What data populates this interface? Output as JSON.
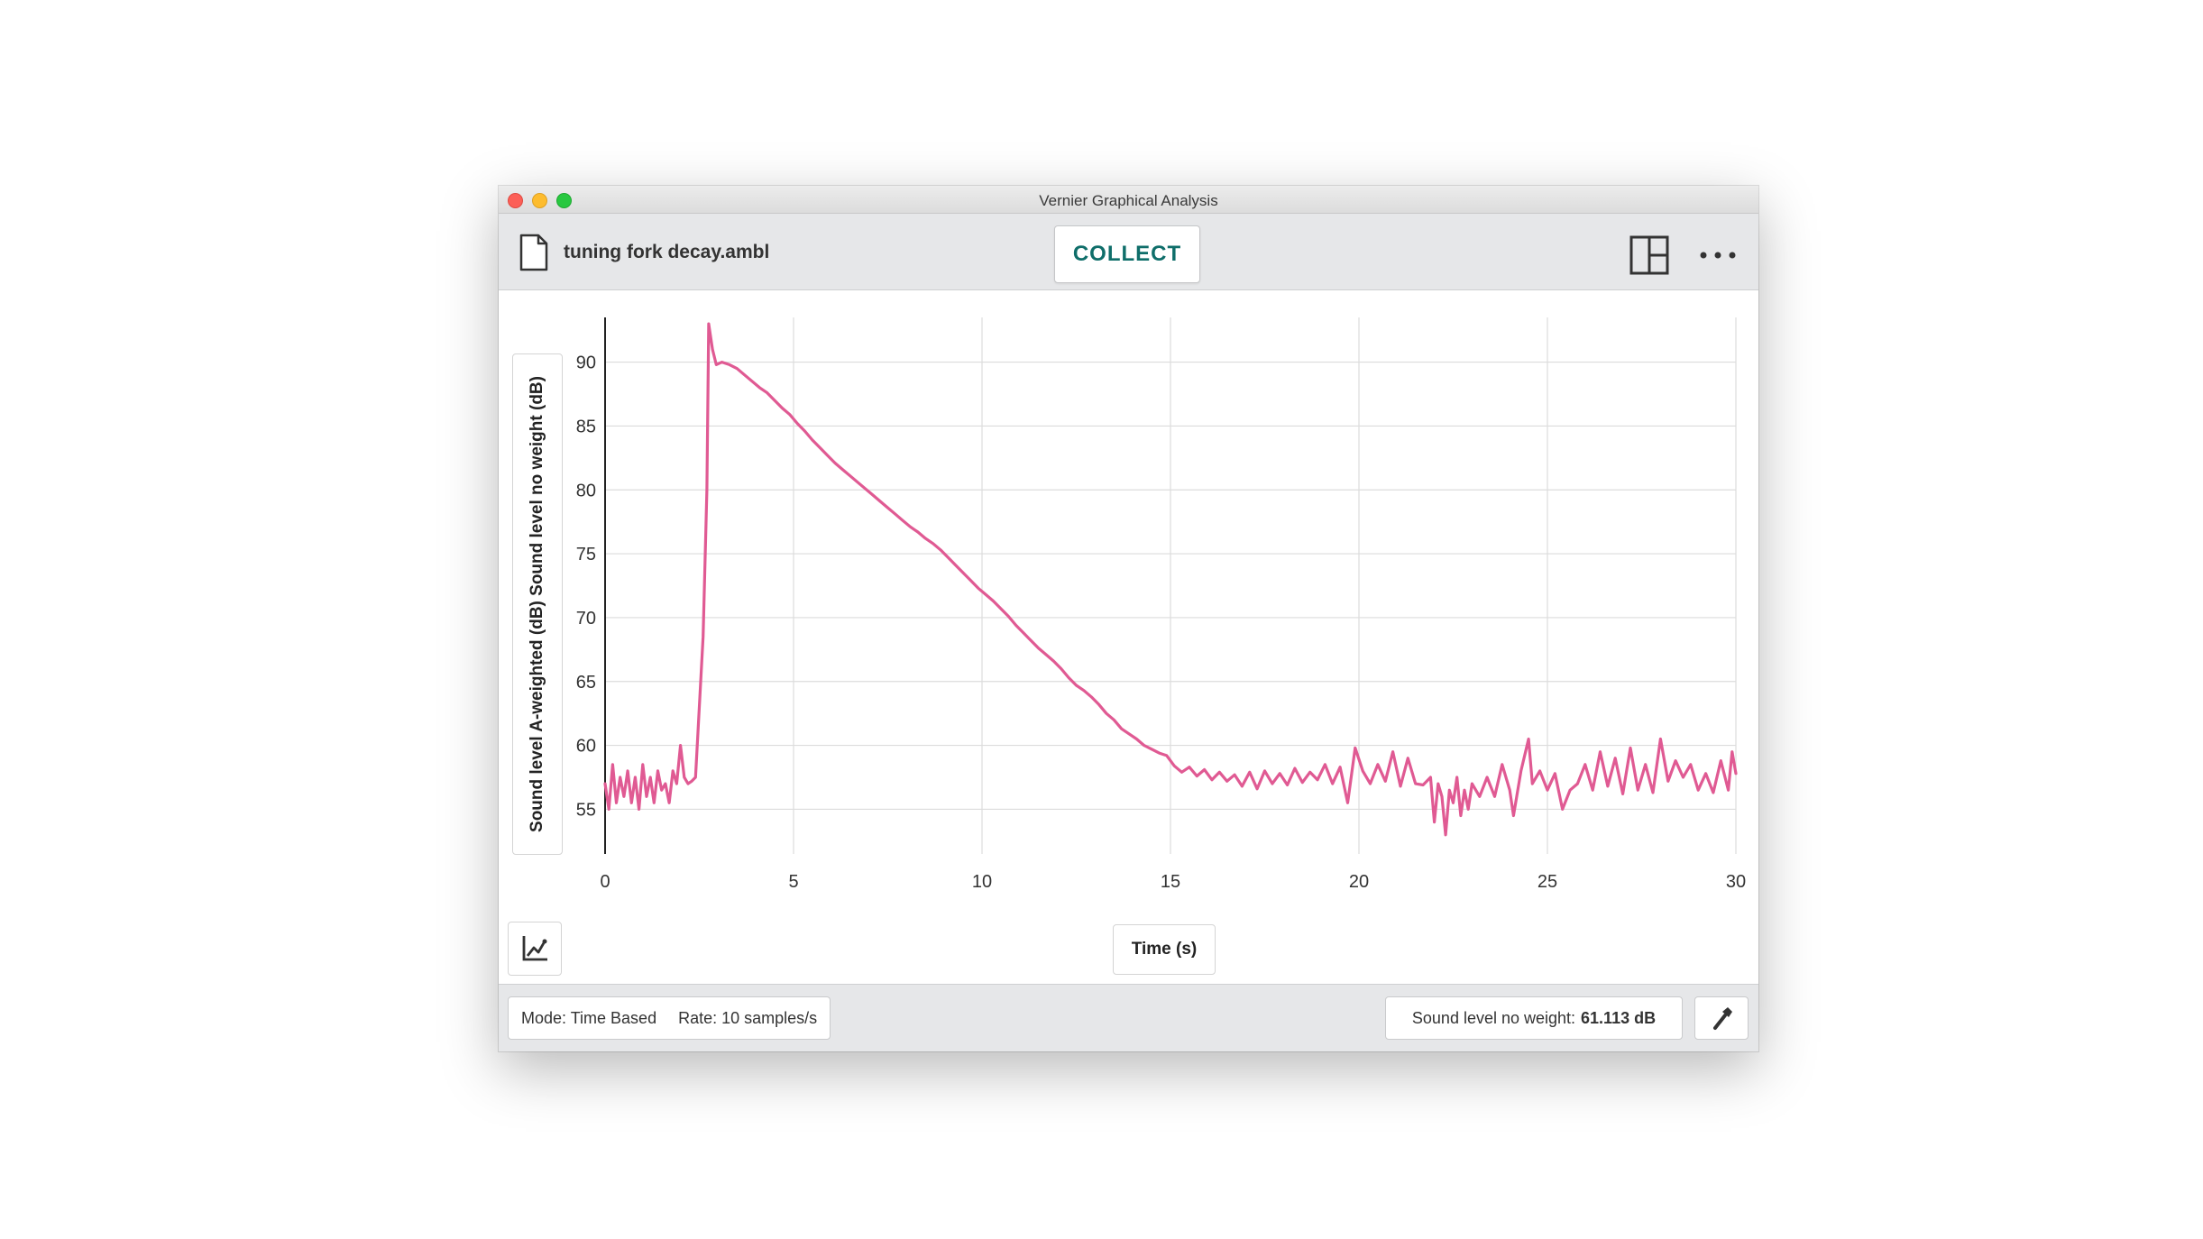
{
  "window": {
    "title": "Vernier Graphical Analysis"
  },
  "toolbar": {
    "file_name": "tuning fork decay.ambl",
    "collect_label": "COLLECT",
    "file_icon": "document-icon",
    "layout_icon": "page-layout-icon",
    "more_icon": "more-options-icon"
  },
  "graph": {
    "y_axis_label": "Sound level A-weighted (dB) Sound level no weight (dB)",
    "x_axis_label": "Time (s)",
    "graph_tools_icon": "graph-tools-icon"
  },
  "status": {
    "mode": "Mode: Time Based",
    "rate": "Rate: 10 samples/s",
    "meter_label": "Sound level no weight:",
    "meter_value": "61.113 dB",
    "settings_icon": "wrench-icon"
  },
  "colors": {
    "series": "#e05a93",
    "collect": "#0f6e6a",
    "grid": "#dcdcdc"
  },
  "chart_data": {
    "type": "line",
    "title": "",
    "xlabel": "Time (s)",
    "ylabel": "Sound level A-weighted (dB) Sound level no weight (dB)",
    "xlim": [
      0,
      30
    ],
    "ylim": [
      51.5,
      93.5
    ],
    "xticks": [
      0,
      5,
      10,
      15,
      20,
      25,
      30
    ],
    "yticks": [
      55,
      60,
      65,
      70,
      75,
      80,
      85,
      90
    ],
    "grid": true,
    "series": [
      {
        "color": "#e05a93",
        "points": [
          [
            0.0,
            57.0
          ],
          [
            0.1,
            55.0
          ],
          [
            0.2,
            58.5
          ],
          [
            0.3,
            55.5
          ],
          [
            0.4,
            57.5
          ],
          [
            0.5,
            56.0
          ],
          [
            0.6,
            58.0
          ],
          [
            0.7,
            55.5
          ],
          [
            0.8,
            57.5
          ],
          [
            0.9,
            55.0
          ],
          [
            1.0,
            58.5
          ],
          [
            1.1,
            56.0
          ],
          [
            1.2,
            57.5
          ],
          [
            1.3,
            55.5
          ],
          [
            1.4,
            58.0
          ],
          [
            1.5,
            56.5
          ],
          [
            1.6,
            57.0
          ],
          [
            1.7,
            55.5
          ],
          [
            1.8,
            58.0
          ],
          [
            1.9,
            57.0
          ],
          [
            2.0,
            60.0
          ],
          [
            2.1,
            57.5
          ],
          [
            2.2,
            57.0
          ],
          [
            2.3,
            57.2
          ],
          [
            2.4,
            57.5
          ],
          [
            2.5,
            63.0
          ],
          [
            2.6,
            68.5
          ],
          [
            2.7,
            80.0
          ],
          [
            2.75,
            93.0
          ],
          [
            2.85,
            91.0
          ],
          [
            2.95,
            89.8
          ],
          [
            3.1,
            90.0
          ],
          [
            3.3,
            89.8
          ],
          [
            3.5,
            89.5
          ],
          [
            3.7,
            89.0
          ],
          [
            3.9,
            88.5
          ],
          [
            4.1,
            88.0
          ],
          [
            4.3,
            87.6
          ],
          [
            4.5,
            87.0
          ],
          [
            4.7,
            86.4
          ],
          [
            4.9,
            85.9
          ],
          [
            5.1,
            85.2
          ],
          [
            5.3,
            84.6
          ],
          [
            5.5,
            83.9
          ],
          [
            5.7,
            83.3
          ],
          [
            5.9,
            82.7
          ],
          [
            6.1,
            82.1
          ],
          [
            6.3,
            81.6
          ],
          [
            6.5,
            81.1
          ],
          [
            6.7,
            80.6
          ],
          [
            6.9,
            80.1
          ],
          [
            7.1,
            79.6
          ],
          [
            7.3,
            79.1
          ],
          [
            7.5,
            78.6
          ],
          [
            7.7,
            78.1
          ],
          [
            7.9,
            77.6
          ],
          [
            8.1,
            77.1
          ],
          [
            8.3,
            76.7
          ],
          [
            8.5,
            76.2
          ],
          [
            8.7,
            75.8
          ],
          [
            8.9,
            75.3
          ],
          [
            9.1,
            74.7
          ],
          [
            9.3,
            74.1
          ],
          [
            9.5,
            73.5
          ],
          [
            9.7,
            72.9
          ],
          [
            9.9,
            72.3
          ],
          [
            10.1,
            71.8
          ],
          [
            10.3,
            71.3
          ],
          [
            10.5,
            70.7
          ],
          [
            10.7,
            70.1
          ],
          [
            10.9,
            69.4
          ],
          [
            11.1,
            68.8
          ],
          [
            11.3,
            68.2
          ],
          [
            11.5,
            67.6
          ],
          [
            11.7,
            67.1
          ],
          [
            11.9,
            66.6
          ],
          [
            12.1,
            66.0
          ],
          [
            12.3,
            65.3
          ],
          [
            12.5,
            64.7
          ],
          [
            12.7,
            64.3
          ],
          [
            12.9,
            63.8
          ],
          [
            13.1,
            63.2
          ],
          [
            13.3,
            62.5
          ],
          [
            13.5,
            62.0
          ],
          [
            13.7,
            61.3
          ],
          [
            13.9,
            60.9
          ],
          [
            14.1,
            60.5
          ],
          [
            14.3,
            60.0
          ],
          [
            14.5,
            59.7
          ],
          [
            14.7,
            59.4
          ],
          [
            14.9,
            59.2
          ],
          [
            15.1,
            58.4
          ],
          [
            15.3,
            57.9
          ],
          [
            15.5,
            58.3
          ],
          [
            15.7,
            57.6
          ],
          [
            15.9,
            58.1
          ],
          [
            16.1,
            57.3
          ],
          [
            16.3,
            57.9
          ],
          [
            16.5,
            57.2
          ],
          [
            16.7,
            57.7
          ],
          [
            16.9,
            56.8
          ],
          [
            17.1,
            57.9
          ],
          [
            17.3,
            56.6
          ],
          [
            17.5,
            58.0
          ],
          [
            17.7,
            57.0
          ],
          [
            17.9,
            57.8
          ],
          [
            18.1,
            56.9
          ],
          [
            18.3,
            58.2
          ],
          [
            18.5,
            57.1
          ],
          [
            18.7,
            57.9
          ],
          [
            18.9,
            57.3
          ],
          [
            19.1,
            58.5
          ],
          [
            19.3,
            57.0
          ],
          [
            19.5,
            58.3
          ],
          [
            19.7,
            55.5
          ],
          [
            19.9,
            59.8
          ],
          [
            20.1,
            58.0
          ],
          [
            20.3,
            57.0
          ],
          [
            20.5,
            58.5
          ],
          [
            20.7,
            57.2
          ],
          [
            20.9,
            59.5
          ],
          [
            21.1,
            56.8
          ],
          [
            21.3,
            59.0
          ],
          [
            21.5,
            57.0
          ],
          [
            21.7,
            56.9
          ],
          [
            21.9,
            57.5
          ],
          [
            22.0,
            54.0
          ],
          [
            22.1,
            57.0
          ],
          [
            22.2,
            56.0
          ],
          [
            22.3,
            53.0
          ],
          [
            22.4,
            56.5
          ],
          [
            22.5,
            55.5
          ],
          [
            22.6,
            57.5
          ],
          [
            22.7,
            54.5
          ],
          [
            22.8,
            56.5
          ],
          [
            22.9,
            55.0
          ],
          [
            23.0,
            57.0
          ],
          [
            23.2,
            56.0
          ],
          [
            23.4,
            57.5
          ],
          [
            23.6,
            56.0
          ],
          [
            23.8,
            58.5
          ],
          [
            24.0,
            56.5
          ],
          [
            24.1,
            54.5
          ],
          [
            24.3,
            58.0
          ],
          [
            24.5,
            60.5
          ],
          [
            24.6,
            57.0
          ],
          [
            24.8,
            58.0
          ],
          [
            25.0,
            56.5
          ],
          [
            25.2,
            57.8
          ],
          [
            25.4,
            55.0
          ],
          [
            25.6,
            56.5
          ],
          [
            25.8,
            57.0
          ],
          [
            26.0,
            58.5
          ],
          [
            26.2,
            56.5
          ],
          [
            26.4,
            59.5
          ],
          [
            26.6,
            56.8
          ],
          [
            26.8,
            59.0
          ],
          [
            27.0,
            56.2
          ],
          [
            27.2,
            59.8
          ],
          [
            27.4,
            56.5
          ],
          [
            27.6,
            58.5
          ],
          [
            27.8,
            56.3
          ],
          [
            28.0,
            60.5
          ],
          [
            28.2,
            57.2
          ],
          [
            28.4,
            58.8
          ],
          [
            28.6,
            57.5
          ],
          [
            28.8,
            58.5
          ],
          [
            29.0,
            56.5
          ],
          [
            29.2,
            57.8
          ],
          [
            29.4,
            56.3
          ],
          [
            29.6,
            58.8
          ],
          [
            29.8,
            56.5
          ],
          [
            29.9,
            59.5
          ],
          [
            30.0,
            57.8
          ]
        ]
      }
    ]
  }
}
